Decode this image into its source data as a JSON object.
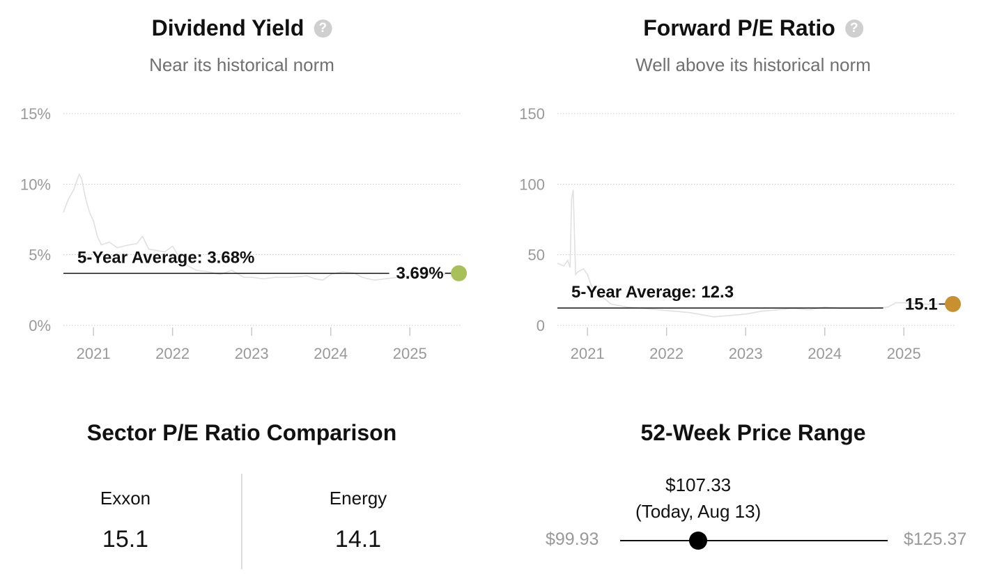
{
  "dividend": {
    "title": "Dividend Yield",
    "help_icon": "question-circle-icon",
    "subtitle": "Near its historical norm"
  },
  "pe": {
    "title": "Forward P/E Ratio",
    "help_icon": "question-circle-icon",
    "subtitle": "Well above its historical norm"
  },
  "sector": {
    "title": "Sector P/E Ratio Comparison",
    "items": [
      {
        "label": "Exxon",
        "value": "15.1"
      },
      {
        "label": "Energy",
        "value": "14.1"
      }
    ]
  },
  "range": {
    "title": "52-Week Price Range",
    "low": "$99.93",
    "high": "$125.37",
    "current_price": "$107.33",
    "current_date": "(Today, Aug 13)",
    "current_fraction": 0.292
  },
  "chart_data": [
    {
      "type": "line",
      "name": "dividend-yield",
      "y_ticks": [
        "15%",
        "10%",
        "5%",
        "0%"
      ],
      "y_tick_values": [
        15,
        10,
        5,
        0
      ],
      "x_ticks": [
        "2021",
        "2022",
        "2023",
        "2024",
        "2025"
      ],
      "x_tick_values": [
        2021,
        2022,
        2023,
        2024,
        2025
      ],
      "xlim": [
        2020.62,
        2025.65
      ],
      "ylim": [
        0,
        15
      ],
      "grid": true,
      "average_label": "5-Year Average: 3.68%",
      "average_value": 3.68,
      "current_label": "3.69%",
      "current_value": 3.69,
      "current_x": 2025.62,
      "line_color": "#e0e0e0",
      "dot_color": "#a8c05a",
      "series": [
        {
          "x": [
            2020.62,
            2020.68,
            2020.75,
            2020.82,
            2020.85,
            2020.9,
            2020.95,
            2021.0,
            2021.05,
            2021.1,
            2021.2,
            2021.3,
            2021.45,
            2021.55,
            2021.62,
            2021.7,
            2021.8,
            2021.9,
            2022.0,
            2022.1,
            2022.2,
            2022.3,
            2022.45,
            2022.6,
            2022.75,
            2022.9,
            2023.0,
            2023.15,
            2023.3,
            2023.5,
            2023.7,
            2023.8,
            2023.9,
            2024.0,
            2024.15,
            2024.3,
            2024.4,
            2024.55,
            2024.7,
            2024.85,
            2025.0,
            2025.2,
            2025.4,
            2025.62
          ],
          "y": [
            8.0,
            8.9,
            9.6,
            10.7,
            10.4,
            9.0,
            8.0,
            7.4,
            6.3,
            5.7,
            5.9,
            5.5,
            5.7,
            5.8,
            6.3,
            5.4,
            5.3,
            5.2,
            5.6,
            4.7,
            4.2,
            3.9,
            3.8,
            3.6,
            3.9,
            3.4,
            3.4,
            3.3,
            3.4,
            3.4,
            3.5,
            3.3,
            3.2,
            3.6,
            3.8,
            3.7,
            3.4,
            3.2,
            3.3,
            3.4,
            3.5,
            3.6,
            3.6,
            3.69
          ]
        }
      ]
    },
    {
      "type": "line",
      "name": "forward-pe",
      "y_ticks": [
        "150",
        "100",
        "50",
        "0"
      ],
      "y_tick_values": [
        150,
        100,
        50,
        0
      ],
      "x_ticks": [
        "2021",
        "2022",
        "2023",
        "2024",
        "2025"
      ],
      "x_tick_values": [
        2021,
        2022,
        2023,
        2024,
        2025
      ],
      "xlim": [
        2020.62,
        2025.65
      ],
      "ylim": [
        0,
        150
      ],
      "grid": true,
      "average_label": "5-Year Average: 12.3",
      "average_value": 12.3,
      "current_label": "15.1",
      "current_value": 15.1,
      "current_x": 2025.62,
      "line_color": "#e0e0e0",
      "dot_color": "#c8902f",
      "series": [
        {
          "x": [
            2020.62,
            2020.7,
            2020.75,
            2020.78,
            2020.8,
            2020.82,
            2020.85,
            2020.88,
            2020.95,
            2021.0,
            2021.05,
            2021.15,
            2021.3,
            2021.5,
            2021.7,
            2021.9,
            2022.1,
            2022.3,
            2022.5,
            2022.6,
            2022.8,
            2023.0,
            2023.2,
            2023.4,
            2023.6,
            2023.8,
            2024.0,
            2024.2,
            2024.4,
            2024.6,
            2024.8,
            2024.9,
            2025.0,
            2025.2,
            2025.4,
            2025.62
          ],
          "y": [
            44,
            42,
            46,
            41,
            90,
            96,
            36,
            38,
            40,
            36,
            28,
            22,
            15,
            13,
            12,
            11,
            10,
            9,
            7,
            6,
            7,
            8,
            10,
            11,
            12,
            11,
            13,
            12,
            12,
            12,
            13,
            16,
            16,
            15,
            15,
            15.1
          ]
        }
      ]
    }
  ]
}
